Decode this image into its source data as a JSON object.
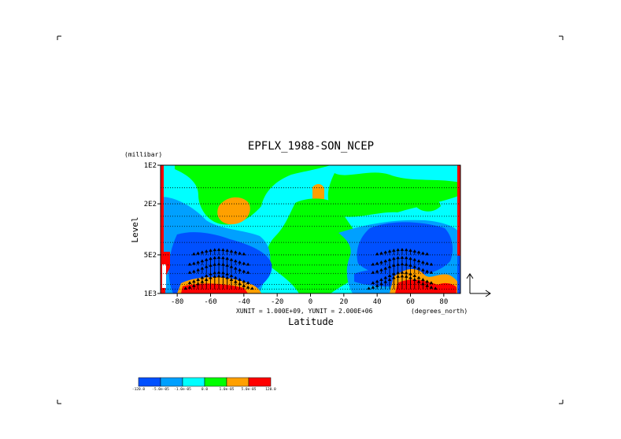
{
  "chart_data": {
    "type": "heatmap",
    "title": "EPFLX_1988-SON_NCEP",
    "xlabel": "Latitude",
    "ylabel": "Level",
    "y_units": "(millibar)",
    "x_units": "(degrees_north)",
    "unit_note": "XUNIT = 1.000E+09, YUNIT = 2.000E+06",
    "xlim": [
      -90,
      90
    ],
    "ylim": [
      1000,
      100
    ],
    "y_scale": "log",
    "x_ticks": [
      -80,
      -60,
      -40,
      -20,
      0,
      20,
      40,
      60,
      80
    ],
    "x_tick_labels": [
      "-80",
      "-60",
      "-40",
      "-20",
      "0",
      "20",
      "40",
      "60",
      "80"
    ],
    "y_ticks": [
      100,
      200,
      500,
      1000
    ],
    "y_tick_labels": [
      "1E2",
      "2E2",
      "5E2",
      "1E3"
    ],
    "colorbar": {
      "colors": [
        "#0050ff",
        "#00a0ff",
        "#00ffff",
        "#00ff00",
        "#ffa000",
        "#ff0000"
      ],
      "labels": [
        "-120.0",
        "-5.0e-05",
        "-1.0e-05",
        "0.0",
        "1.0e-05",
        "5.0e-05",
        "120.0"
      ]
    },
    "vectors": "EP flux arrows, upward, strongest near 60S and 60N below 500 mb"
  }
}
